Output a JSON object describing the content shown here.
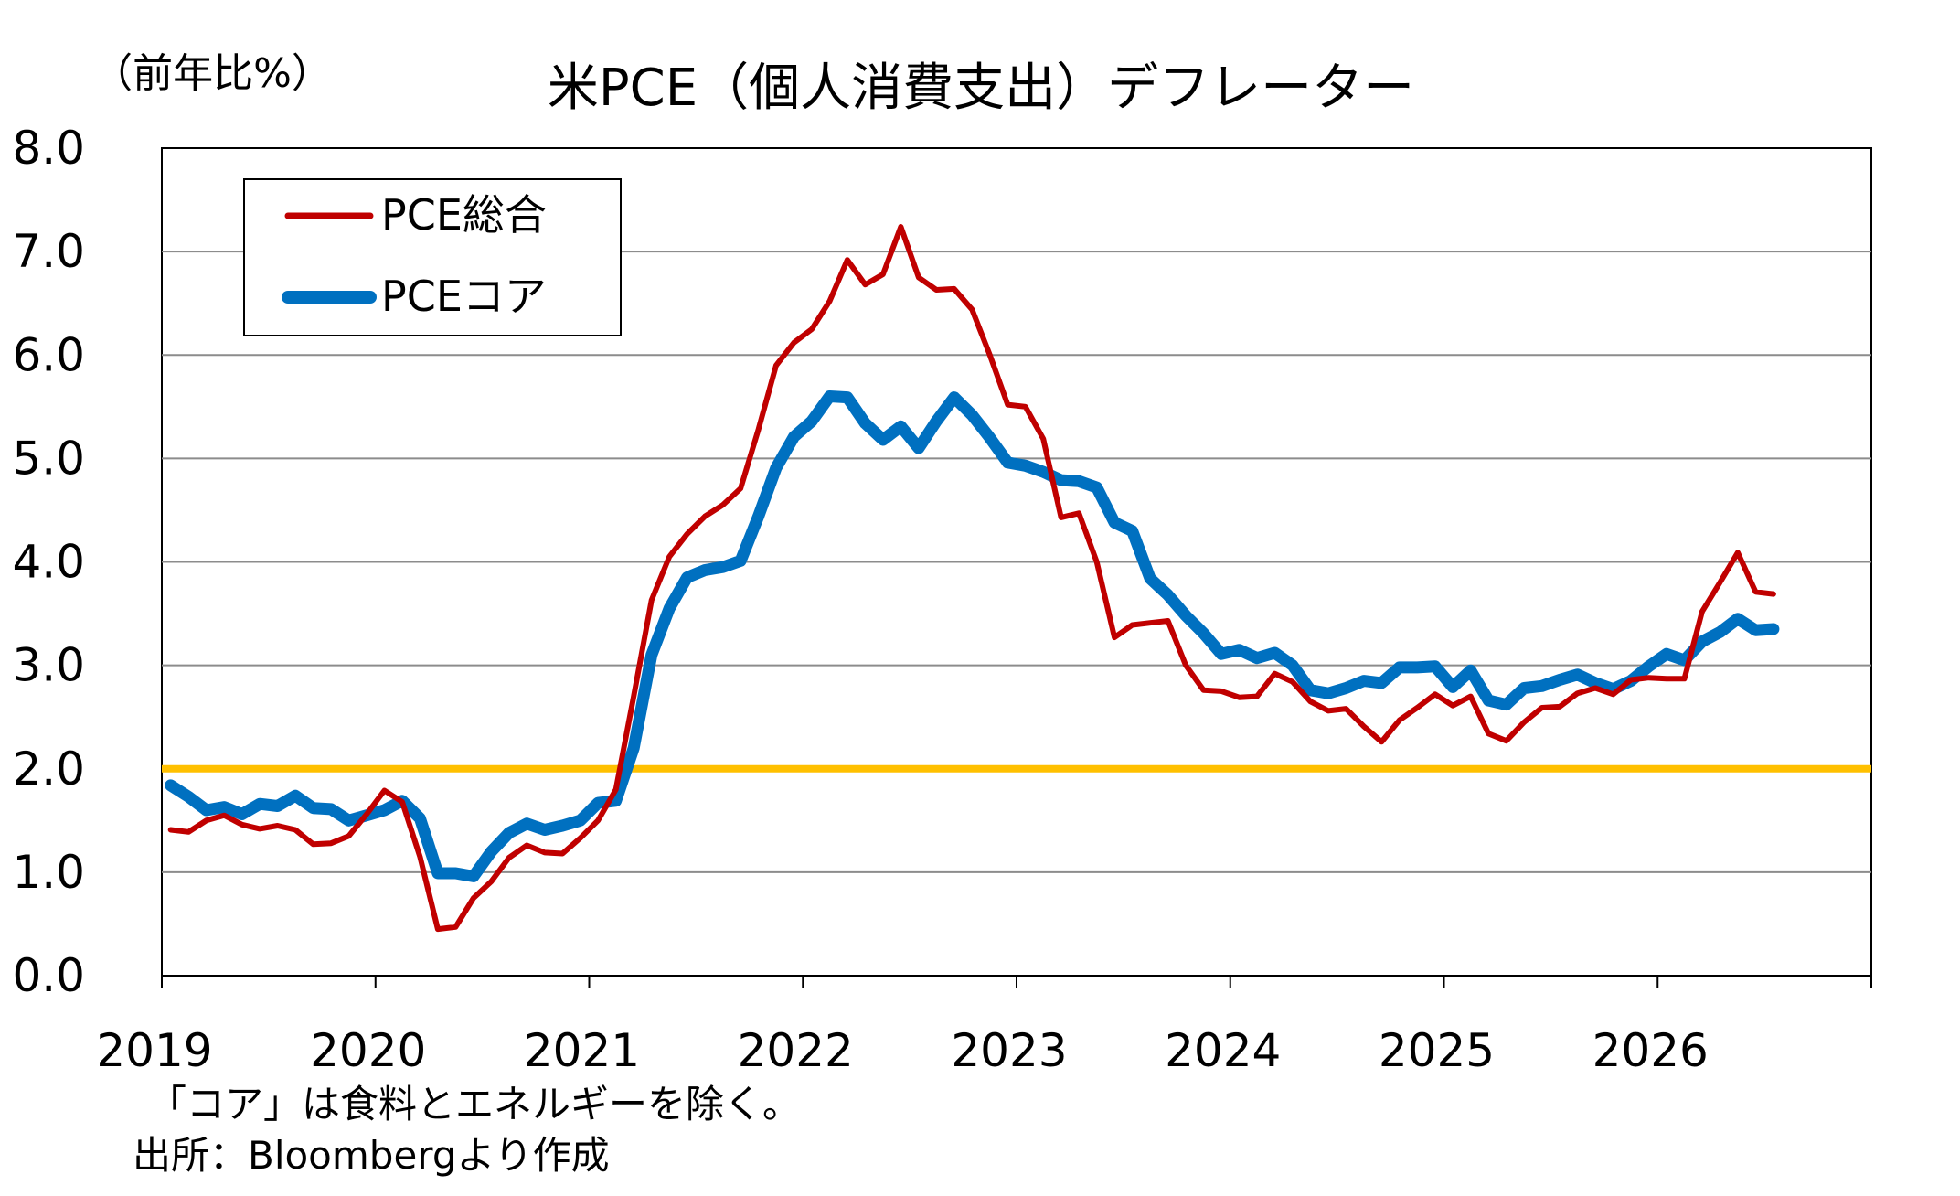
{
  "chart_data": {
    "type": "line",
    "title": "米PCE（個人消費支出）デフレーター",
    "ylabel": "（前年比%）",
    "xlabel": "",
    "ylim": [
      0,
      8
    ],
    "y_ticks": [
      "0.0",
      "1.0",
      "2.0",
      "3.0",
      "4.0",
      "5.0",
      "6.0",
      "7.0",
      "8.0"
    ],
    "xlim": [
      2019,
      2027
    ],
    "x_ticks": [
      "2019",
      "2020",
      "2021",
      "2022",
      "2023",
      "2024",
      "2025",
      "2026"
    ],
    "grid": true,
    "legend_position": "top-left",
    "notes": [
      "「コア」は食料とエネルギーを除く。",
      "出所：Bloombergより作成"
    ],
    "reference_line": {
      "value": 2.0,
      "color": "#FFC000"
    },
    "series": [
      {
        "name": "PCE総合",
        "color": "#C00000",
        "x": [
          2019.0417,
          2019.125,
          2019.2083,
          2019.2917,
          2019.375,
          2019.4583,
          2019.5417,
          2019.625,
          2019.7083,
          2019.7917,
          2019.875,
          2019.9583,
          2020.0417,
          2020.125,
          2020.2083,
          2020.2917,
          2020.375,
          2020.4583,
          2020.5417,
          2020.625,
          2020.7083,
          2020.7917,
          2020.875,
          2020.9583,
          2021.0417,
          2021.125,
          2021.2083,
          2021.2917,
          2021.375,
          2021.4583,
          2021.5417,
          2021.625,
          2021.7083,
          2021.7917,
          2021.875,
          2021.9583,
          2022.0417,
          2022.125,
          2022.2083,
          2022.2917,
          2022.375,
          2022.4583,
          2022.5417,
          2022.625,
          2022.7083,
          2022.7917,
          2022.875,
          2022.9583,
          2023.0417,
          2023.125,
          2023.2083,
          2023.2917,
          2023.375,
          2023.4583,
          2023.5417,
          2023.625,
          2023.7083,
          2023.7917,
          2023.875,
          2023.9583,
          2024.0417,
          2024.125,
          2024.2083,
          2024.2917,
          2024.375,
          2024.4583,
          2024.5417,
          2024.625,
          2024.7083,
          2024.7917,
          2024.875,
          2024.9583,
          2025.0417,
          2025.125,
          2025.2083,
          2025.2917,
          2025.375,
          2025.4583,
          2025.5417,
          2025.625,
          2025.7083,
          2025.7917,
          2025.875,
          2025.9583,
          2026.0417,
          2026.125,
          2026.2083,
          2026.2917,
          2026.375,
          2026.4583,
          2026.5417
        ],
        "values": [
          1.41,
          1.39,
          1.5,
          1.55,
          1.46,
          1.42,
          1.45,
          1.41,
          1.27,
          1.28,
          1.35,
          1.56,
          1.79,
          1.68,
          1.15,
          0.45,
          0.47,
          0.75,
          0.91,
          1.14,
          1.26,
          1.19,
          1.18,
          1.33,
          1.5,
          1.8,
          2.7,
          3.63,
          4.05,
          4.27,
          4.44,
          4.55,
          4.71,
          5.28,
          5.9,
          6.12,
          6.25,
          6.52,
          6.92,
          6.68,
          6.78,
          7.24,
          6.75,
          6.63,
          6.64,
          6.44,
          6.0,
          5.52,
          5.5,
          5.19,
          4.43,
          4.47,
          4.0,
          3.27,
          3.39,
          3.41,
          3.43,
          3.0,
          2.76,
          2.75,
          2.69,
          2.7,
          2.92,
          2.84,
          2.65,
          2.56,
          2.58,
          2.41,
          2.26,
          2.47,
          2.59,
          2.72,
          2.61,
          2.7,
          2.34,
          2.27,
          2.45,
          2.59,
          2.6,
          2.73,
          2.78,
          2.72,
          2.86,
          2.88,
          2.87,
          2.87,
          3.52,
          3.8,
          4.09,
          3.71,
          3.69
        ]
      },
      {
        "name": "PCEコア",
        "color": "#0070C0",
        "x": [
          2019.0417,
          2019.125,
          2019.2083,
          2019.2917,
          2019.375,
          2019.4583,
          2019.5417,
          2019.625,
          2019.7083,
          2019.7917,
          2019.875,
          2019.9583,
          2020.0417,
          2020.125,
          2020.2083,
          2020.2917,
          2020.375,
          2020.4583,
          2020.5417,
          2020.625,
          2020.7083,
          2020.7917,
          2020.875,
          2020.9583,
          2021.0417,
          2021.125,
          2021.2083,
          2021.2917,
          2021.375,
          2021.4583,
          2021.5417,
          2021.625,
          2021.7083,
          2021.7917,
          2021.875,
          2021.9583,
          2022.0417,
          2022.125,
          2022.2083,
          2022.2917,
          2022.375,
          2022.4583,
          2022.5417,
          2022.625,
          2022.7083,
          2022.7917,
          2022.875,
          2022.9583,
          2023.0417,
          2023.125,
          2023.2083,
          2023.2917,
          2023.375,
          2023.4583,
          2023.5417,
          2023.625,
          2023.7083,
          2023.7917,
          2023.875,
          2023.9583,
          2024.0417,
          2024.125,
          2024.2083,
          2024.2917,
          2024.375,
          2024.4583,
          2024.5417,
          2024.625,
          2024.7083,
          2024.7917,
          2024.875,
          2024.9583,
          2025.0417,
          2025.125,
          2025.2083,
          2025.2917,
          2025.375,
          2025.4583,
          2025.5417,
          2025.625,
          2025.7083,
          2025.7917,
          2025.875,
          2025.9583,
          2026.0417,
          2026.125,
          2026.2083,
          2026.2917,
          2026.375,
          2026.4583,
          2026.5417
        ],
        "values": [
          1.84,
          1.73,
          1.6,
          1.63,
          1.56,
          1.66,
          1.64,
          1.74,
          1.62,
          1.61,
          1.5,
          1.55,
          1.6,
          1.69,
          1.52,
          0.99,
          0.99,
          0.96,
          1.2,
          1.38,
          1.47,
          1.41,
          1.45,
          1.5,
          1.67,
          1.69,
          2.2,
          3.1,
          3.55,
          3.85,
          3.92,
          3.95,
          4.01,
          4.44,
          4.91,
          5.21,
          5.36,
          5.6,
          5.59,
          5.34,
          5.18,
          5.31,
          5.1,
          5.36,
          5.59,
          5.42,
          5.2,
          4.96,
          4.93,
          4.87,
          4.79,
          4.78,
          4.72,
          4.38,
          4.3,
          3.84,
          3.68,
          3.48,
          3.31,
          3.11,
          3.15,
          3.07,
          3.12,
          3.0,
          2.76,
          2.73,
          2.78,
          2.85,
          2.83,
          2.98,
          2.98,
          2.99,
          2.79,
          2.95,
          2.66,
          2.62,
          2.78,
          2.8,
          2.86,
          2.91,
          2.83,
          2.77,
          2.85,
          2.99,
          3.11,
          3.05,
          3.23,
          3.32,
          3.45,
          3.34,
          3.35
        ]
      }
    ]
  }
}
